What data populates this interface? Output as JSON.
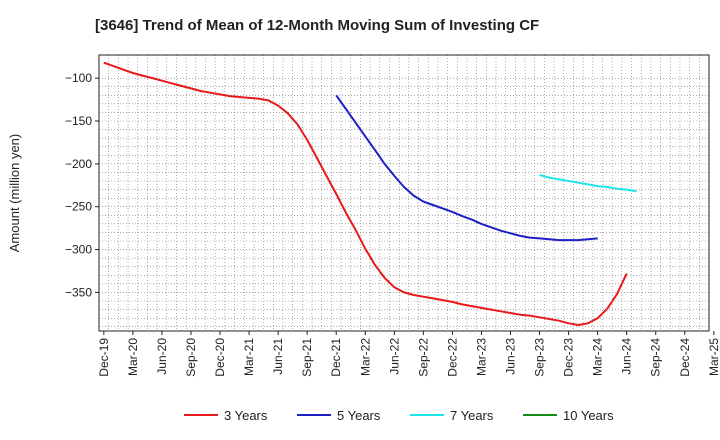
{
  "chart_data": {
    "type": "line",
    "title": "[3646]  Trend of Mean of 12-Month Moving Sum of Investing CF",
    "xlabel": "",
    "ylabel": "Amount (million yen)",
    "ylim": [
      -395,
      -73
    ],
    "yticks": [
      -100,
      -150,
      -200,
      -250,
      -300,
      -350
    ],
    "x_tick_labels": [
      "Dec-19",
      "Mar-20",
      "Jun-20",
      "Sep-20",
      "Dec-20",
      "Mar-21",
      "Jun-21",
      "Sep-21",
      "Dec-21",
      "Mar-22",
      "Jun-22",
      "Sep-22",
      "Dec-22",
      "Mar-23",
      "Jun-23",
      "Sep-23",
      "Dec-23",
      "Mar-24",
      "Jun-24",
      "Sep-24",
      "Dec-24",
      "Mar-25"
    ],
    "x_start": "2019-12",
    "x_count": 63,
    "grid": true,
    "legend_position": "bottom",
    "series": [
      {
        "name": "3 Years",
        "color": "#e8191b",
        "start_index": 0,
        "values": [
          -82,
          -86,
          -90,
          -94,
          -97,
          -100,
          -103,
          -106,
          -109,
          -112,
          -115,
          -117,
          -119,
          -121,
          -122,
          -123,
          -124,
          -126,
          -132,
          -141,
          -154,
          -172,
          -193,
          -214,
          -235,
          -257,
          -277,
          -299,
          -318,
          -333,
          -344,
          -350,
          -353,
          -355,
          -357,
          -359,
          -361,
          -364,
          -366,
          -368,
          -370,
          -372,
          -374,
          -376,
          -377,
          -379,
          -381,
          -383,
          -386,
          -388,
          -386,
          -380,
          -369,
          -352,
          -328
        ]
      },
      {
        "name": "5 Years",
        "color": "#1f1fc8",
        "start_index": 24,
        "values": [
          -120,
          -136,
          -152,
          -168,
          -184,
          -200,
          -214,
          -227,
          -237,
          -244,
          -248,
          -252,
          -256,
          -261,
          -265,
          -270,
          -274,
          -278,
          -281,
          -284,
          -286,
          -287,
          -288,
          -289,
          -289,
          -289,
          -288,
          -287
        ]
      },
      {
        "name": "7 Years",
        "color": "#1ee6e8",
        "start_index": 45,
        "values": [
          -213,
          -216,
          -218,
          -220,
          -222,
          -224,
          -226,
          -227,
          -229,
          -230,
          -232
        ]
      },
      {
        "name": "10 Years",
        "color": "#1a8a1a",
        "start_index": 63,
        "values": []
      }
    ]
  }
}
